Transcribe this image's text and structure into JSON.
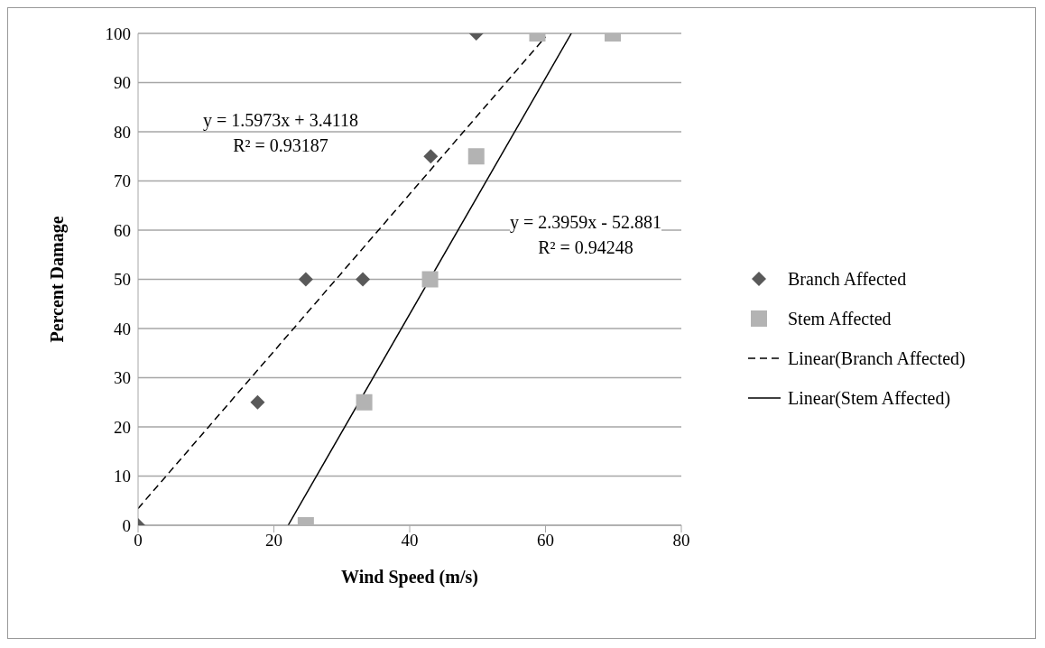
{
  "chart_data": {
    "type": "scatter",
    "xlabel": "Wind Speed (m/s)",
    "ylabel": "Percent Damage",
    "xlim": [
      0,
      80
    ],
    "xticks": [
      0,
      20,
      40,
      60,
      80
    ],
    "ylim": [
      0,
      100
    ],
    "yticks": [
      0,
      10,
      20,
      30,
      40,
      50,
      60,
      70,
      80,
      90,
      100
    ],
    "grid": "y",
    "legend": "right",
    "series": [
      {
        "name": "Branch Affected",
        "marker": "diamond",
        "color": "#595959",
        "x": [
          0,
          17.6,
          24.7,
          33.1,
          43.1,
          49.8
        ],
        "values": [
          0,
          25,
          50,
          50,
          75,
          100
        ]
      },
      {
        "name": "Stem Affected",
        "marker": "square",
        "color": "#b3b3b3",
        "x": [
          24.7,
          33.3,
          43,
          49.8,
          58.8,
          69.9
        ],
        "values": [
          0,
          25,
          50,
          75,
          100,
          100
        ]
      },
      {
        "name": "Linear(Branch Affected)",
        "type": "line",
        "marker": "none",
        "line_style": "dashed",
        "color": "#000000",
        "x": [
          0,
          60
        ],
        "values": [
          3.4,
          99.3
        ]
      },
      {
        "name": "Linear(Stem Affected)",
        "type": "line",
        "marker": "none",
        "line_style": "solid",
        "color": "#000000",
        "x": [
          22.1,
          63.8
        ],
        "values": [
          0,
          100
        ]
      }
    ],
    "annotations": [
      "y = 1.5973x + 3.4118",
      "R² = 0.93187",
      "y = 2.3959x - 52.881",
      "R² = 0.94248"
    ]
  }
}
